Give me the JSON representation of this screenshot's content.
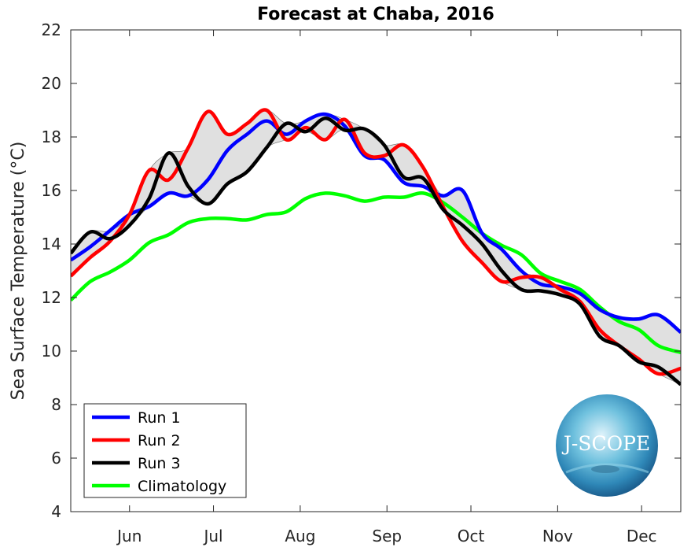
{
  "chart_data": {
    "type": "line",
    "title": "Forecast at Chaba, 2016",
    "xlabel": "",
    "ylabel": "Sea Surface Temperature (°C)",
    "ylim": [
      4,
      22
    ],
    "yticks": [
      4,
      6,
      8,
      10,
      12,
      14,
      16,
      18,
      20,
      22
    ],
    "xlim": [
      "2016-05-11",
      "2016-12-15"
    ],
    "xticks": [
      {
        "date": "2016-06-01",
        "label": "Jun"
      },
      {
        "date": "2016-07-01",
        "label": "Jul"
      },
      {
        "date": "2016-08-01",
        "label": "Aug"
      },
      {
        "date": "2016-09-01",
        "label": "Sep"
      },
      {
        "date": "2016-10-01",
        "label": "Oct"
      },
      {
        "date": "2016-11-01",
        "label": "Nov"
      },
      {
        "date": "2016-12-01",
        "label": "Dec"
      }
    ],
    "grid": false,
    "legend_position": "bottom-left",
    "envelope": {
      "between": [
        "Run 1",
        "Run 2",
        "Run 3"
      ],
      "color": "#e0e0e0"
    },
    "x": [
      "2016-05-11",
      "2016-05-18",
      "2016-05-25",
      "2016-06-01",
      "2016-06-08",
      "2016-06-15",
      "2016-06-22",
      "2016-06-29",
      "2016-07-06",
      "2016-07-13",
      "2016-07-20",
      "2016-07-27",
      "2016-08-03",
      "2016-08-10",
      "2016-08-17",
      "2016-08-24",
      "2016-08-31",
      "2016-09-07",
      "2016-09-14",
      "2016-09-21",
      "2016-09-28",
      "2016-10-05",
      "2016-10-12",
      "2016-10-19",
      "2016-10-26",
      "2016-11-02",
      "2016-11-09",
      "2016-11-16",
      "2016-11-23",
      "2016-11-30",
      "2016-12-07",
      "2016-12-15"
    ],
    "series": [
      {
        "name": "Run 1",
        "color": "#0000ff",
        "values": [
          13.4,
          13.9,
          14.5,
          15.1,
          15.4,
          15.9,
          15.8,
          16.4,
          17.5,
          18.1,
          18.6,
          18.1,
          18.6,
          18.85,
          18.4,
          17.3,
          17.15,
          16.3,
          16.15,
          15.8,
          16.0,
          14.4,
          13.8,
          13.0,
          12.5,
          12.4,
          12.15,
          11.55,
          11.25,
          11.2,
          11.35,
          10.7
        ]
      },
      {
        "name": "Run 2",
        "color": "#ff0000",
        "values": [
          12.8,
          13.5,
          14.1,
          15.1,
          16.75,
          16.4,
          17.6,
          18.95,
          18.1,
          18.5,
          19.0,
          17.9,
          18.35,
          17.9,
          18.65,
          17.4,
          17.3,
          17.7,
          16.85,
          15.4,
          14.1,
          13.3,
          12.6,
          12.75,
          12.75,
          12.3,
          11.85,
          10.8,
          10.2,
          9.7,
          9.15,
          9.35
        ]
      },
      {
        "name": "Run 3",
        "color": "#000000",
        "values": [
          13.65,
          14.45,
          14.2,
          14.7,
          15.7,
          17.4,
          16.15,
          15.5,
          16.25,
          16.7,
          17.6,
          18.5,
          18.2,
          18.7,
          18.25,
          18.3,
          17.7,
          16.5,
          16.45,
          15.3,
          14.7,
          14.0,
          13.0,
          12.3,
          12.25,
          12.1,
          11.75,
          10.55,
          10.2,
          9.6,
          9.4,
          8.75
        ]
      },
      {
        "name": "Climatology",
        "color": "#00ff00",
        "values": [
          11.9,
          12.6,
          12.95,
          13.4,
          14.05,
          14.35,
          14.8,
          14.95,
          14.95,
          14.9,
          15.1,
          15.2,
          15.7,
          15.9,
          15.8,
          15.6,
          15.75,
          15.75,
          15.9,
          15.55,
          15.0,
          14.4,
          13.95,
          13.6,
          12.9,
          12.6,
          12.3,
          11.65,
          11.1,
          10.8,
          10.2,
          9.95
        ]
      }
    ]
  },
  "logo": {
    "text": "J-SCOPE"
  }
}
